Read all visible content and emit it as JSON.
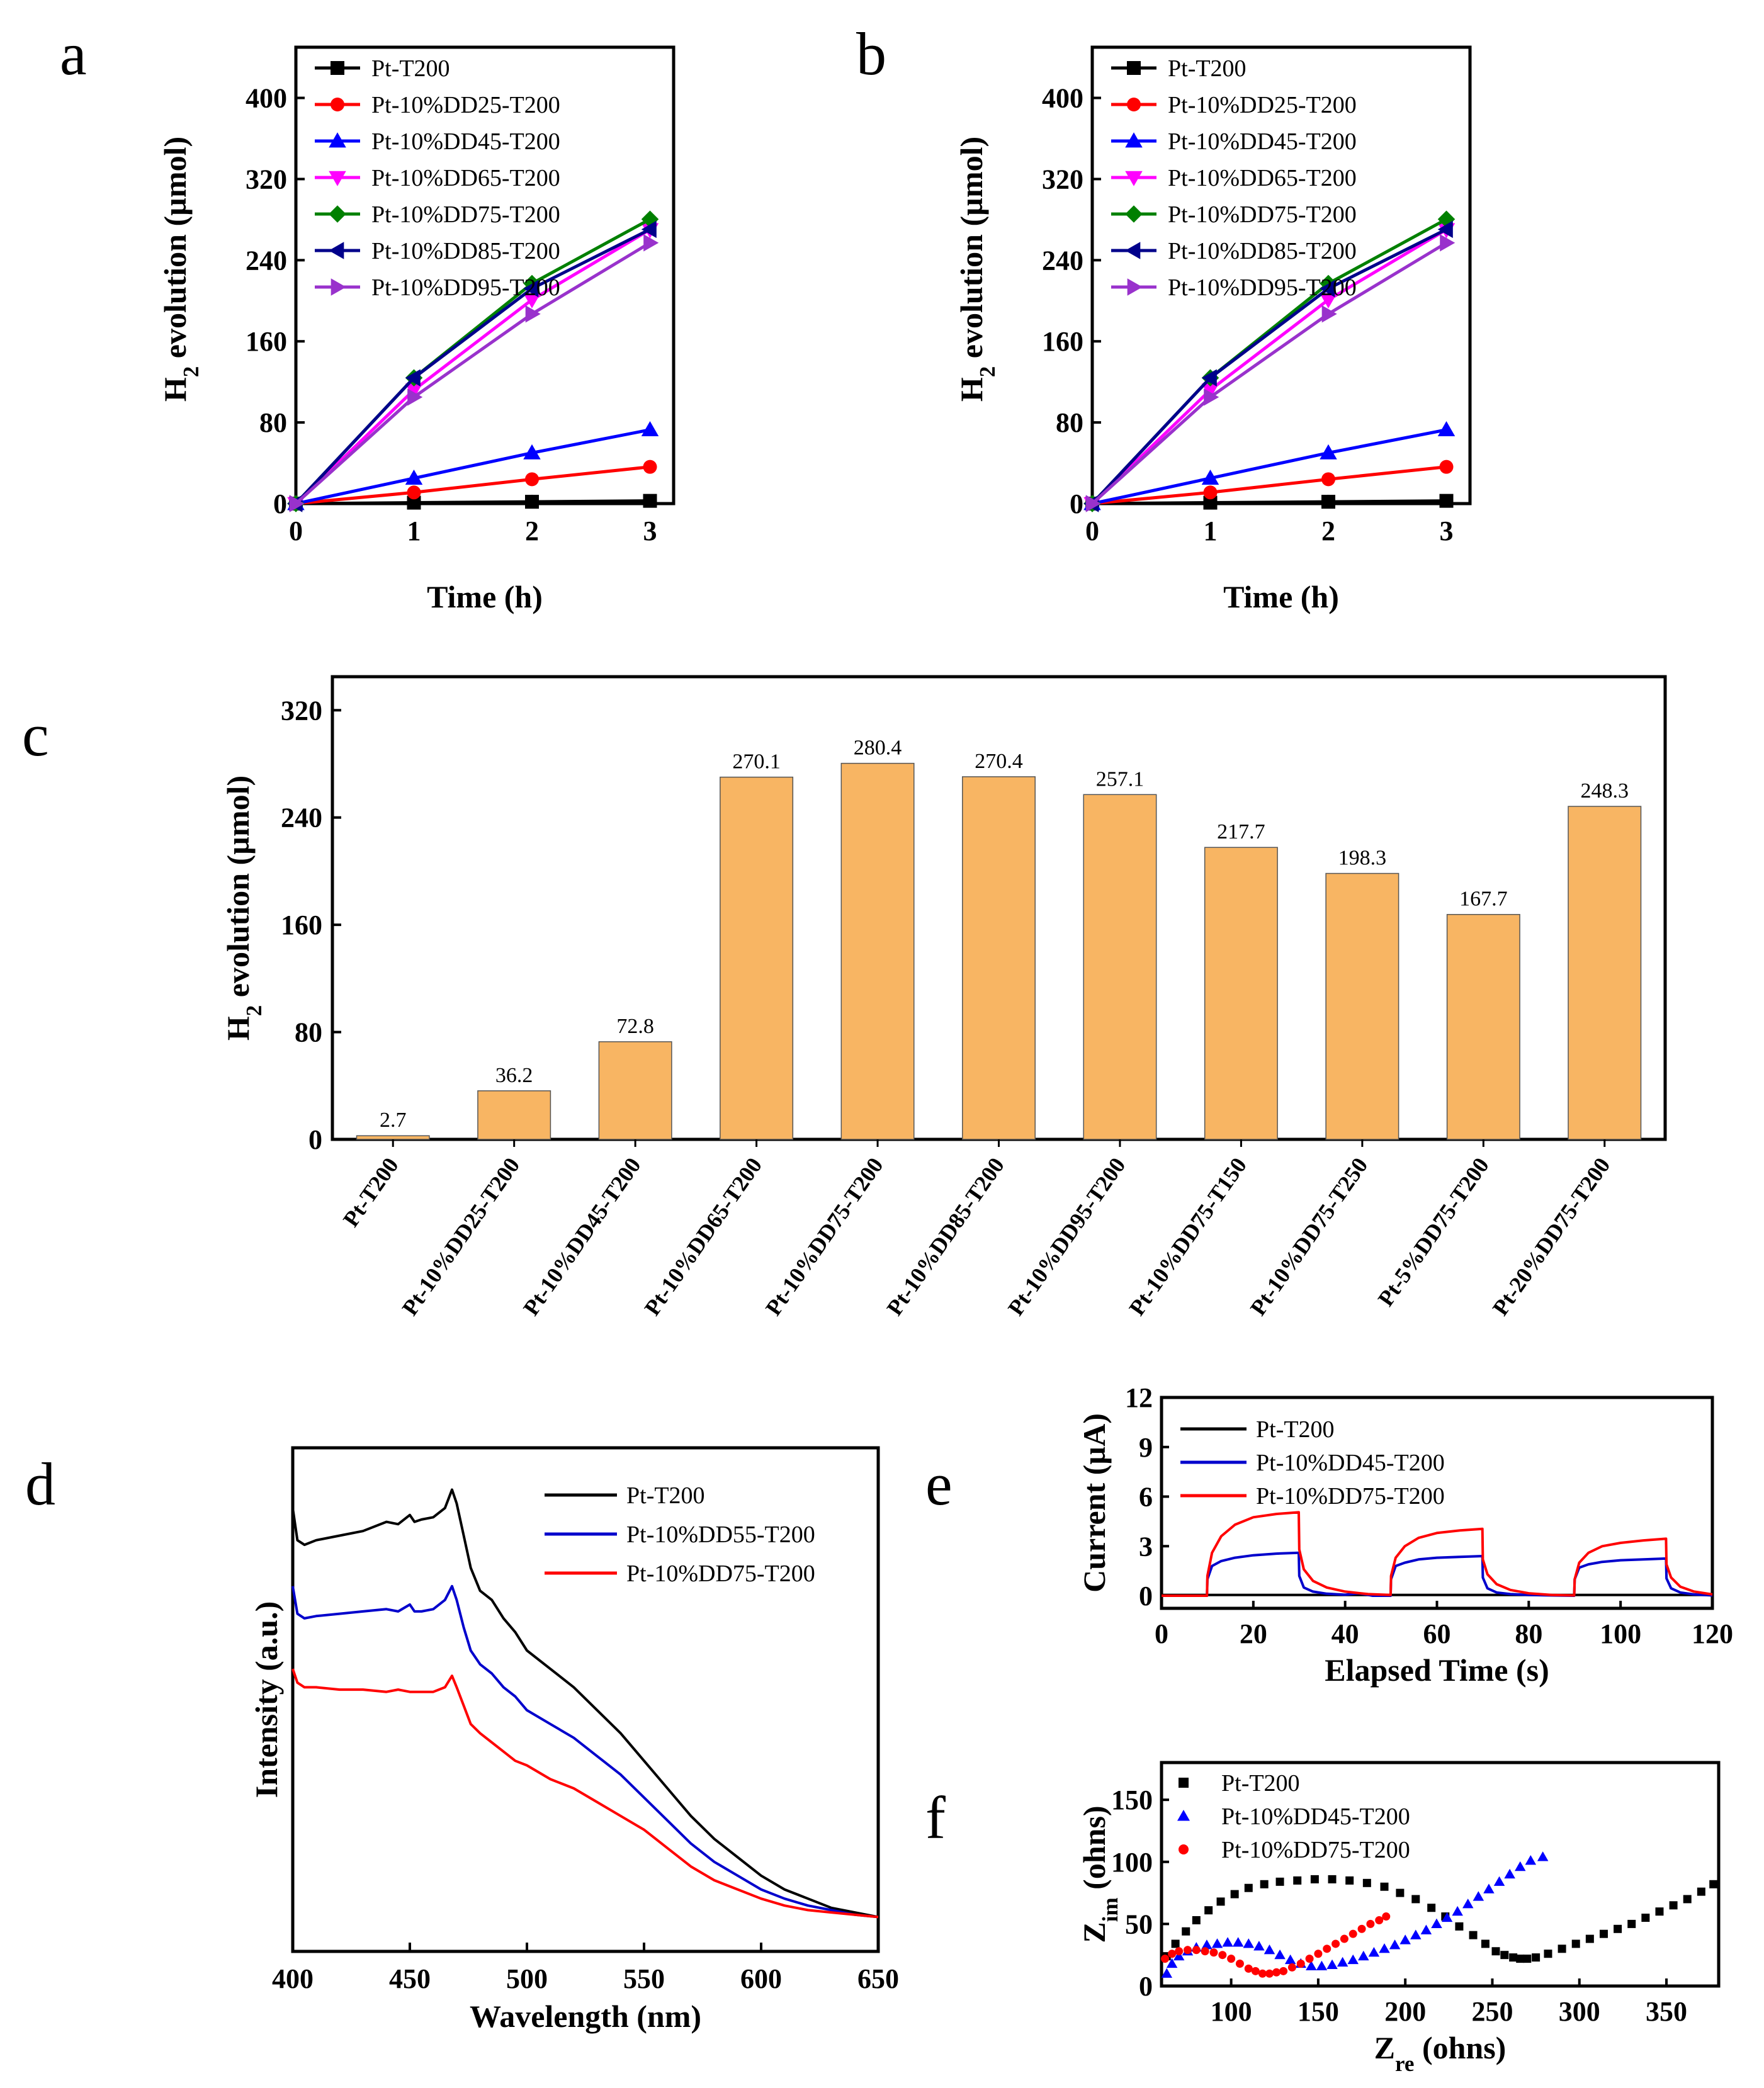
{
  "colors": {
    "Pt-T200": "#000000",
    "DD25": "#ff0000",
    "DD45": "#0000ff",
    "DD65": "#ff00ff",
    "DD75": "#008000",
    "DD85": "#00008b",
    "DD95": "#9932cc",
    "bar": "#f8b563",
    "d_black": "#000000",
    "d_blue": "#0000cc",
    "d_red": "#ff0000"
  },
  "panels": {
    "a": "a",
    "b": "b",
    "c": "c",
    "d": "d",
    "e": "e",
    "f": "f"
  },
  "chart_data": [
    {
      "id": "a",
      "type": "line",
      "xlabel": "Time (h)",
      "ylabel": "H2 evolution (µmol)",
      "ylabel_main": "H",
      "ylabel_sub": "2",
      "ylabel_rest": " evolution (µmol)",
      "x": [
        0,
        1,
        2,
        3
      ],
      "xlim": [
        0,
        3.2
      ],
      "ylim": [
        0,
        450
      ],
      "xticks": [
        "0",
        "1",
        "2",
        "3"
      ],
      "yticks": [
        "0",
        "80",
        "160",
        "240",
        "320",
        "400"
      ],
      "legend_position": "top-left",
      "series": [
        {
          "name": "Pt-T200",
          "marker": "square",
          "values": [
            0,
            0.9,
            1.8,
            2.7
          ]
        },
        {
          "name": "Pt-10%DD25-T200",
          "marker": "circle",
          "values": [
            0,
            11,
            24,
            36.2
          ]
        },
        {
          "name": "Pt-10%DD45-T200",
          "marker": "triangle-up",
          "values": [
            0,
            25,
            50,
            72.8
          ]
        },
        {
          "name": "Pt-10%DD65-T200",
          "marker": "triangle-down",
          "values": [
            0,
            112,
            201,
            270.1
          ]
        },
        {
          "name": "Pt-10%DD75-T200",
          "marker": "diamond",
          "values": [
            0,
            124,
            217,
            280.4
          ]
        },
        {
          "name": "Pt-10%DD85-T200",
          "marker": "triangle-left",
          "values": [
            0,
            124,
            212,
            270.4
          ]
        },
        {
          "name": "Pt-10%DD95-T200",
          "marker": "triangle-right",
          "values": [
            0,
            105,
            187,
            257.1
          ]
        }
      ]
    },
    {
      "id": "b",
      "type": "line",
      "xlabel": "Time (h)",
      "ylabel": "H2 evolution (µmol)",
      "ylabel_main": "H",
      "ylabel_sub": "2",
      "ylabel_rest": " evolution (µmol)",
      "x": [
        0,
        1,
        2,
        3
      ],
      "xlim": [
        0,
        3.2
      ],
      "ylim": [
        0,
        450
      ],
      "xticks": [
        "0",
        "1",
        "2",
        "3"
      ],
      "yticks": [
        "0",
        "80",
        "160",
        "240",
        "320",
        "400"
      ],
      "legend_position": "top-left",
      "series": [
        {
          "name": "Pt-T200",
          "marker": "square",
          "values": [
            0,
            0.9,
            1.8,
            2.7
          ]
        },
        {
          "name": "Pt-10%DD25-T200",
          "marker": "circle",
          "values": [
            0,
            11,
            24,
            36.2
          ]
        },
        {
          "name": "Pt-10%DD45-T200",
          "marker": "triangle-up",
          "values": [
            0,
            25,
            50,
            72.8
          ]
        },
        {
          "name": "Pt-10%DD65-T200",
          "marker": "triangle-down",
          "values": [
            0,
            112,
            201,
            270.1
          ]
        },
        {
          "name": "Pt-10%DD75-T200",
          "marker": "diamond",
          "values": [
            0,
            124,
            217,
            280.4
          ]
        },
        {
          "name": "Pt-10%DD85-T200",
          "marker": "triangle-left",
          "values": [
            0,
            124,
            212,
            270.4
          ]
        },
        {
          "name": "Pt-10%DD95-T200",
          "marker": "triangle-right",
          "values": [
            0,
            105,
            187,
            257.1
          ]
        }
      ]
    },
    {
      "id": "c",
      "type": "bar",
      "ylabel": "H2 evolution (µmol)",
      "ylabel_main": "H",
      "ylabel_sub": "2",
      "ylabel_rest": " evolution (µmol)",
      "ylim": [
        0,
        345
      ],
      "yticks": [
        "0",
        "80",
        "160",
        "240",
        "320"
      ],
      "categories": [
        "Pt-T200",
        "Pt-10%DD25-T200",
        "Pt-10%DD45-T200",
        "Pt-10%DD65-T200",
        "Pt-10%DD75-T200",
        "Pt-10%DD85-T200",
        "Pt-10%DD95-T200",
        "Pt-10%DD75-T150",
        "Pt-10%DD75-T250",
        "Pt-5%DD75-T200",
        "Pt-20%DD75-T200"
      ],
      "values": [
        2.7,
        36.2,
        72.8,
        270.1,
        280.4,
        270.4,
        257.1,
        217.7,
        198.3,
        167.7,
        248.3
      ],
      "labels": [
        "2.7",
        "36.2",
        "72.8",
        "270.1",
        "280.4",
        "270.4",
        "257.1",
        "217.7",
        "198.3",
        "167.7",
        "248.3"
      ]
    },
    {
      "id": "d",
      "type": "line",
      "xlabel": "Wavelength (nm)",
      "ylabel": "Intensity (a.u.)",
      "xlim": [
        400,
        650
      ],
      "ylim": [
        0,
        1
      ],
      "xticks": [
        "400",
        "450",
        "500",
        "550",
        "600",
        "650"
      ],
      "legend_position": "top-right",
      "series": [
        {
          "name": "Pt-T200",
          "x": [
            400,
            402,
            405,
            410,
            420,
            430,
            440,
            445,
            450,
            452,
            455,
            460,
            465,
            468,
            470,
            473,
            476,
            480,
            485,
            490,
            495,
            500,
            510,
            520,
            530,
            540,
            550,
            560,
            570,
            580,
            590,
            600,
            610,
            620,
            630,
            640,
            650
          ],
          "values": [
            0.91,
            0.84,
            0.83,
            0.84,
            0.85,
            0.86,
            0.88,
            0.875,
            0.895,
            0.88,
            0.885,
            0.89,
            0.91,
            0.95,
            0.92,
            0.85,
            0.78,
            0.73,
            0.71,
            0.67,
            0.64,
            0.6,
            0.56,
            0.52,
            0.47,
            0.42,
            0.36,
            0.3,
            0.24,
            0.19,
            0.15,
            0.11,
            0.08,
            0.06,
            0.04,
            0.03,
            0.02
          ]
        },
        {
          "name": "Pt-10%DD55-T200",
          "x": [
            400,
            402,
            405,
            410,
            420,
            430,
            440,
            445,
            450,
            452,
            455,
            460,
            465,
            468,
            470,
            473,
            476,
            480,
            485,
            490,
            495,
            500,
            510,
            520,
            530,
            540,
            550,
            560,
            570,
            580,
            590,
            600,
            610,
            620,
            630,
            640,
            650
          ],
          "values": [
            0.74,
            0.68,
            0.67,
            0.675,
            0.68,
            0.685,
            0.69,
            0.685,
            0.7,
            0.685,
            0.685,
            0.69,
            0.71,
            0.74,
            0.71,
            0.65,
            0.6,
            0.57,
            0.55,
            0.52,
            0.5,
            0.47,
            0.44,
            0.41,
            0.37,
            0.33,
            0.28,
            0.23,
            0.18,
            0.14,
            0.11,
            0.08,
            0.06,
            0.045,
            0.035,
            0.025,
            0.02
          ]
        },
        {
          "name": "Pt-10%DD75-T200",
          "x": [
            400,
            402,
            405,
            410,
            420,
            430,
            440,
            445,
            450,
            455,
            460,
            465,
            468,
            470,
            473,
            476,
            480,
            485,
            490,
            495,
            500,
            510,
            520,
            530,
            540,
            550,
            560,
            570,
            580,
            590,
            600,
            610,
            620,
            630,
            640,
            650
          ],
          "values": [
            0.56,
            0.53,
            0.52,
            0.52,
            0.515,
            0.515,
            0.51,
            0.515,
            0.51,
            0.51,
            0.51,
            0.52,
            0.545,
            0.52,
            0.48,
            0.44,
            0.42,
            0.4,
            0.38,
            0.36,
            0.35,
            0.32,
            0.3,
            0.27,
            0.24,
            0.21,
            0.17,
            0.13,
            0.1,
            0.08,
            0.06,
            0.045,
            0.035,
            0.03,
            0.025,
            0.02
          ]
        }
      ]
    },
    {
      "id": "e",
      "type": "line",
      "xlabel": "Elapsed Time (s)",
      "ylabel": "Current (µA)",
      "xlim": [
        0,
        120
      ],
      "ylim": [
        -0.4,
        12
      ],
      "xticks": [
        "0",
        "20",
        "40",
        "60",
        "80",
        "100",
        "120"
      ],
      "yticks": [
        "0",
        "3",
        "6",
        "9",
        "12"
      ],
      "legend_position": "top-center",
      "series": [
        {
          "name": "Pt-T200",
          "x": [
            0,
            120
          ],
          "values": [
            0.05,
            0.05
          ]
        },
        {
          "name": "Pt-10%DD45-T200",
          "x": [
            0,
            9.9,
            10,
            11,
            13,
            16,
            20,
            25,
            29.9,
            30,
            31,
            33,
            36,
            40,
            43,
            45,
            46,
            49.9,
            50,
            51,
            53,
            56,
            60,
            65,
            69.9,
            70,
            71,
            73,
            76,
            80,
            85,
            89.9,
            90,
            91,
            93,
            96,
            100,
            105,
            109.9,
            110,
            111,
            113,
            116,
            120
          ],
          "values": [
            0,
            0,
            1.0,
            1.8,
            2.1,
            2.3,
            2.45,
            2.55,
            2.6,
            1.2,
            0.5,
            0.25,
            0.12,
            0.06,
            0.15,
            0.05,
            0,
            0,
            1.0,
            1.8,
            2.0,
            2.2,
            2.3,
            2.35,
            2.4,
            1.1,
            0.45,
            0.2,
            0.1,
            0.05,
            0.02,
            0,
            1.0,
            1.7,
            1.9,
            2.05,
            2.15,
            2.2,
            2.25,
            1.05,
            0.45,
            0.2,
            0.08,
            0.02
          ]
        },
        {
          "name": "Pt-10%DD75-T200",
          "x": [
            0,
            9.9,
            10,
            11,
            13,
            16,
            20,
            25,
            29.9,
            30,
            31,
            33,
            36,
            40,
            45,
            49.9,
            50,
            51,
            53,
            56,
            60,
            65,
            69.9,
            70,
            71,
            73,
            76,
            80,
            85,
            89.9,
            90,
            91,
            93,
            96,
            100,
            105,
            109.9,
            110,
            111,
            113,
            116,
            120
          ],
          "values": [
            0,
            0,
            1.2,
            2.6,
            3.6,
            4.3,
            4.75,
            4.95,
            5.05,
            2.8,
            1.6,
            0.9,
            0.5,
            0.25,
            0.1,
            0.05,
            1.2,
            2.3,
            3.0,
            3.5,
            3.8,
            3.95,
            4.05,
            2.2,
            1.3,
            0.7,
            0.35,
            0.15,
            0.05,
            0.02,
            1.0,
            2.0,
            2.6,
            3.0,
            3.2,
            3.35,
            3.45,
            1.9,
            1.1,
            0.55,
            0.25,
            0.08
          ]
        }
      ]
    },
    {
      "id": "f",
      "type": "scatter",
      "xlabel": "Zre (ohns)",
      "xlabel_main": "Z",
      "xlabel_sub": "re",
      "xlabel_rest": " (ohns)",
      "ylabel": "Zim (ohns)",
      "ylabel_main": "Z",
      "ylabel_sub": "im",
      "ylabel_rest": " (ohns)",
      "xlim": [
        60,
        380
      ],
      "ylim": [
        0,
        180
      ],
      "xticks": [
        "100",
        "150",
        "200",
        "250",
        "300",
        "350"
      ],
      "yticks": [
        "0",
        "50",
        "100",
        "150"
      ],
      "legend_position": "top-left",
      "series": [
        {
          "name": "Pt-T200",
          "marker": "square",
          "x": [
            63,
            68,
            74,
            80,
            87,
            94,
            102,
            110,
            119,
            128,
            138,
            148,
            158,
            168,
            178,
            188,
            197,
            206,
            215,
            223,
            231,
            239,
            246,
            252,
            257,
            262,
            266,
            270,
            275,
            282,
            290,
            298,
            306,
            314,
            322,
            330,
            338,
            346,
            354,
            362,
            370,
            377
          ],
          "values": [
            24,
            34,
            44,
            53,
            61,
            68,
            74,
            79,
            82,
            84,
            85,
            86,
            86,
            85,
            83,
            80,
            75,
            70,
            63,
            56,
            48,
            41,
            34,
            28,
            25,
            23,
            22,
            22,
            23,
            26,
            30,
            34,
            38,
            42,
            46,
            50,
            55,
            60,
            65,
            70,
            76,
            82
          ]
        },
        {
          "name": "Pt-10%DD45-T200",
          "marker": "triangle-up",
          "x": [
            63,
            66,
            70,
            75,
            80,
            86,
            92,
            98,
            104,
            110,
            116,
            122,
            128,
            134,
            140,
            146,
            152,
            158,
            164,
            170,
            176,
            182,
            188,
            194,
            200,
            206,
            212,
            218,
            224,
            230,
            236,
            242,
            248,
            254,
            260,
            266,
            272,
            279
          ],
          "values": [
            10,
            18,
            24,
            28,
            31,
            33,
            34,
            35,
            35,
            34,
            32,
            29,
            25,
            21,
            18,
            16,
            16,
            17,
            19,
            21,
            24,
            27,
            30,
            33,
            37,
            41,
            45,
            50,
            55,
            60,
            66,
            72,
            78,
            84,
            90,
            96,
            101,
            104
          ]
        },
        {
          "name": "Pt-10%DD75-T200",
          "marker": "circle",
          "x": [
            62,
            66,
            70,
            75,
            80,
            85,
            90,
            95,
            100,
            105,
            110,
            114,
            118,
            122,
            126,
            130,
            135,
            140,
            145,
            150,
            155,
            160,
            165,
            170,
            175,
            180,
            185,
            189
          ],
          "values": [
            22,
            26,
            28,
            29,
            29,
            28,
            27,
            25,
            22,
            18,
            14,
            12,
            10,
            10,
            11,
            12,
            15,
            18,
            22,
            26,
            30,
            34,
            38,
            42,
            46,
            50,
            53,
            56
          ]
        }
      ]
    }
  ]
}
